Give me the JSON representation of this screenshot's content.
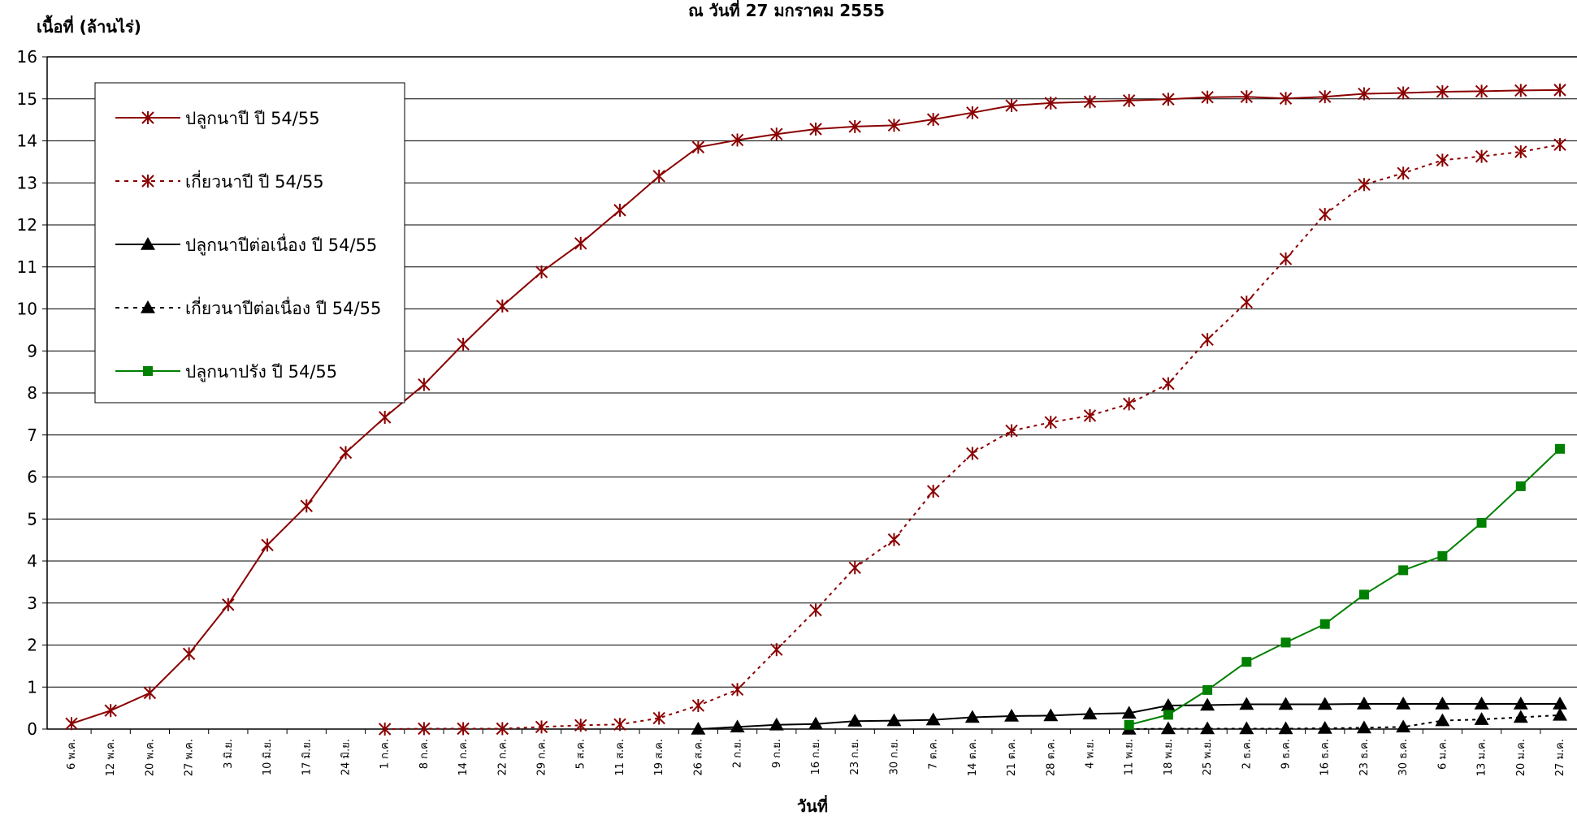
{
  "chart_data": {
    "type": "line",
    "title": "ณ  วันที่ 27 มกราคม 2555",
    "ylabel": "เนื้อที่ (ล้านไร่)",
    "xlabel": "วันที่",
    "ylim": [
      0,
      16
    ],
    "yticks": [
      0,
      1,
      2,
      3,
      4,
      5,
      6,
      7,
      8,
      9,
      10,
      11,
      12,
      13,
      14,
      15,
      16
    ],
    "grid": true,
    "legend_position": "top-left",
    "categories": [
      "6 พ.ค.",
      "12 พ.ค.",
      "20 พ.ค.",
      "27 พ.ค.",
      "3 มิ.ย.",
      "10 มิ.ย.",
      "17 มิ.ย.",
      "24 มิ.ย.",
      "1 ก.ค.",
      "8 ก.ค.",
      "14 ก.ค.",
      "22 ก.ค.",
      "29 ก.ค.",
      "5 ส.ค.",
      "11 ส.ค.",
      "19 ส.ค.",
      "26 ส.ค.",
      "2 ก.ย.",
      "9 ก.ย.",
      "16 ก.ย.",
      "23 ก.ย.",
      "30 ก.ย.",
      "7 ต.ค.",
      "14 ต.ค.",
      "21 ต.ค.",
      "28 ต.ค.",
      "4 พ.ย.",
      "11 พ.ย.",
      "18 พ.ย.",
      "25 พ.ย.",
      "2 ธ.ค.",
      "9 ธ.ค.",
      "16 ธ.ค.",
      "23 ธ.ค.",
      "30 ธ.ค.",
      "6 ม.ค.",
      "13 ม.ค.",
      "20 ม.ค.",
      "27 ม.ค."
    ],
    "series": [
      {
        "name": "ปลูกนาปี     ปี 54/55",
        "color": "#8B0000",
        "dashed": false,
        "marker": "asterisk",
        "values": [
          0.13,
          0.44,
          0.86,
          1.79,
          2.96,
          4.38,
          5.31,
          6.58,
          7.42,
          8.2,
          9.16,
          10.07,
          10.88,
          11.56,
          12.35,
          13.16,
          13.85,
          14.02,
          14.16,
          14.28,
          14.34,
          14.37,
          14.51,
          14.67,
          14.84,
          14.9,
          14.93,
          14.96,
          14.99,
          15.04,
          15.05,
          15.01,
          15.05,
          15.12,
          15.14,
          15.17,
          15.18,
          15.2,
          15.21
        ]
      },
      {
        "name": "เกี่ยวนาปี     ปี 54/55",
        "color": "#8B0000",
        "dashed": true,
        "marker": "asterisk",
        "values": [
          null,
          null,
          null,
          null,
          null,
          null,
          null,
          null,
          0.0,
          0.01,
          0.01,
          0.01,
          0.05,
          0.09,
          0.11,
          0.26,
          0.56,
          0.94,
          1.89,
          2.83,
          3.84,
          4.51,
          5.66,
          6.56,
          7.1,
          7.3,
          7.46,
          7.74,
          8.22,
          9.27,
          10.16,
          11.19,
          12.25,
          12.96,
          13.23,
          13.54,
          13.63,
          13.74,
          13.91
        ]
      },
      {
        "name": "ปลูกนาปีต่อเนื่อง ปี 54/55",
        "color": "#000000",
        "dashed": false,
        "marker": "triangle",
        "values": [
          null,
          null,
          null,
          null,
          null,
          null,
          null,
          null,
          null,
          null,
          null,
          null,
          null,
          null,
          null,
          null,
          0.0,
          0.05,
          0.1,
          0.12,
          0.19,
          0.2,
          0.22,
          0.28,
          0.31,
          0.32,
          0.36,
          0.38,
          0.56,
          0.57,
          0.59,
          0.59,
          0.59,
          0.6,
          0.6,
          0.6,
          0.6,
          0.6,
          0.6
        ]
      },
      {
        "name": "เกี่ยวนาปีต่อเนื่อง ปี 54/55",
        "color": "#000000",
        "dashed": true,
        "marker": "triangle",
        "values": [
          null,
          null,
          null,
          null,
          null,
          null,
          null,
          null,
          null,
          null,
          null,
          null,
          null,
          null,
          null,
          null,
          null,
          null,
          null,
          null,
          null,
          null,
          null,
          null,
          null,
          null,
          null,
          0.0,
          0.01,
          0.01,
          0.01,
          0.01,
          0.02,
          0.03,
          0.05,
          0.2,
          0.23,
          0.28,
          0.33
        ]
      },
      {
        "name": "ปลูกนาปรัง ปี 54/55",
        "color": "#008000",
        "dashed": false,
        "marker": "square",
        "values": [
          null,
          null,
          null,
          null,
          null,
          null,
          null,
          null,
          null,
          null,
          null,
          null,
          null,
          null,
          null,
          null,
          null,
          null,
          null,
          null,
          null,
          null,
          null,
          null,
          null,
          null,
          null,
          0.1,
          0.34,
          0.93,
          1.6,
          2.06,
          2.5,
          3.2,
          3.78,
          4.12,
          4.91,
          5.78,
          6.67
        ]
      }
    ]
  }
}
